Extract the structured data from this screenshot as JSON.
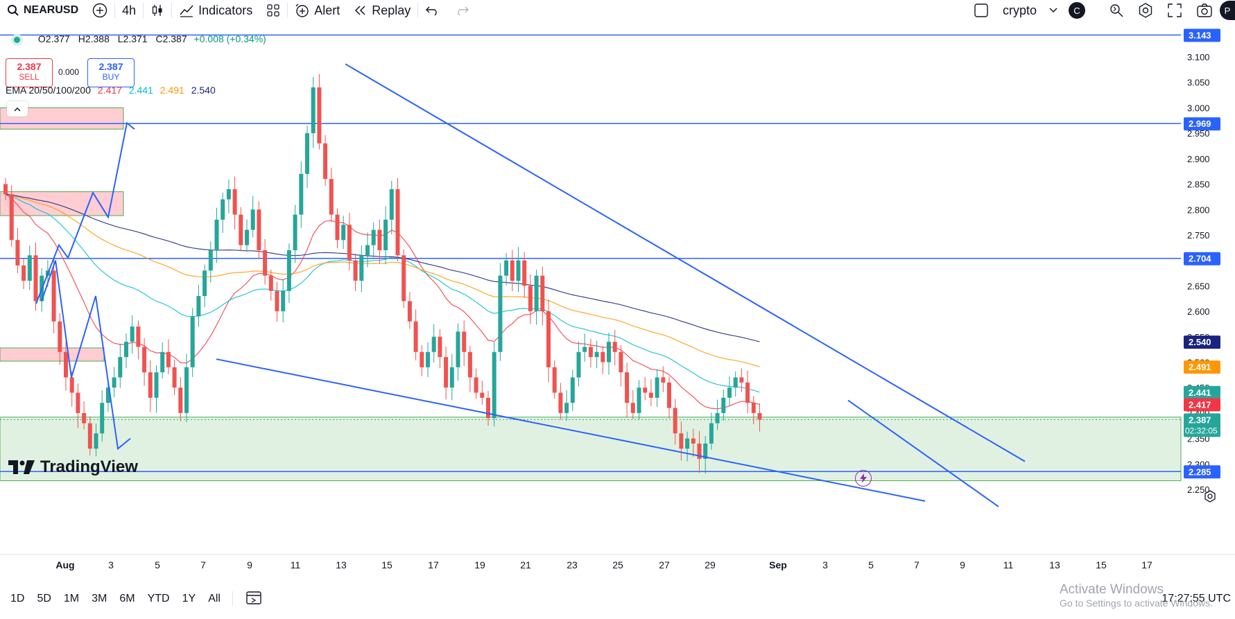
{
  "toolbar": {
    "symbol": "NEARUSD",
    "interval": "4h",
    "indicators_label": "Indicators",
    "alert_label": "Alert",
    "replay_label": "Replay",
    "watchlist_label": "crypto",
    "avatar_letter": "C",
    "profile_letter": "P"
  },
  "ohlc": {
    "open": "O2.377",
    "high": "H2.388",
    "low": "L2.371",
    "close": "C2.387",
    "change": "+0.008 (+0.34%)"
  },
  "trade": {
    "sell_price": "2.387",
    "sell_label": "SELL",
    "spread": "0.000",
    "buy_price": "2.387",
    "buy_label": "BUY"
  },
  "ema": {
    "label": "EMA 20/50/100/200",
    "v20": "2.417",
    "v50": "2.441",
    "v100": "2.491",
    "v200": "2.540"
  },
  "branding": {
    "logo_text": "TradingView"
  },
  "bottom": {
    "ranges": [
      "1D",
      "5D",
      "1M",
      "3M",
      "6M",
      "YTD",
      "1Y",
      "All"
    ],
    "clock": "17:27:55 UTC",
    "watermark_title": "Activate Windows",
    "watermark_sub": "Go to Settings to activate Windows."
  },
  "colors": {
    "up": "#26a69a",
    "down": "#ef5350",
    "trendline": "#2962ff",
    "ema20": "#f23645",
    "ema50": "#00bcd4",
    "ema100": "#ff9800",
    "ema200": "#1a237e",
    "zone_green": "#c8e6c9",
    "zone_red": "#ffcdd2"
  },
  "chart_data": {
    "type": "candlestick",
    "symbol": "NEARUSD",
    "interval": "4h",
    "y_axis": {
      "range": [
        2.22,
        3.16
      ],
      "ticks": [
        "2.250",
        "2.300",
        "2.350",
        "2.400",
        "2.450",
        "2.500",
        "2.550",
        "2.600",
        "2.650",
        "2.700",
        "2.750",
        "2.800",
        "2.850",
        "2.900",
        "2.950",
        "3.000",
        "3.050",
        "3.100"
      ]
    },
    "x_axis": {
      "ticks": [
        "Aug",
        "3",
        "5",
        "7",
        "9",
        "11",
        "13",
        "15",
        "17",
        "19",
        "21",
        "23",
        "25",
        "27",
        "29",
        "Sep",
        "3",
        "5",
        "7",
        "9",
        "11",
        "13",
        "15",
        "17"
      ]
    },
    "price_labels": [
      {
        "value": "3.143",
        "color": "#2962ff"
      },
      {
        "value": "2.969",
        "color": "#2962ff"
      },
      {
        "value": "2.704",
        "color": "#2962ff"
      },
      {
        "value": "2.540",
        "color": "#1a237e"
      },
      {
        "value": "2.491",
        "color": "#ff9800"
      },
      {
        "value": "2.441",
        "color": "#26a69a"
      },
      {
        "value": "2.417",
        "color": "#f23645"
      },
      {
        "value": "2.387",
        "color": "#26a69a",
        "sub": "02:32:05"
      },
      {
        "value": "2.285",
        "color": "#2962ff"
      }
    ],
    "horizontal_levels": [
      3.143,
      2.969,
      2.704,
      2.285
    ],
    "support_zone": [
      2.267,
      2.392
    ],
    "ema_last": {
      "ema20": 2.417,
      "ema50": 2.441,
      "ema100": 2.491,
      "ema200": 2.54
    },
    "closes": [
      2.83,
      2.74,
      2.69,
      2.66,
      2.71,
      2.62,
      2.67,
      2.68,
      2.58,
      2.52,
      2.47,
      2.44,
      2.4,
      2.38,
      2.33,
      2.36,
      2.42,
      2.45,
      2.47,
      2.51,
      2.54,
      2.57,
      2.53,
      2.48,
      2.43,
      2.48,
      2.52,
      2.49,
      2.45,
      2.4,
      2.49,
      2.59,
      2.63,
      2.68,
      2.72,
      2.78,
      2.82,
      2.84,
      2.79,
      2.73,
      2.76,
      2.8,
      2.72,
      2.67,
      2.64,
      2.6,
      2.64,
      2.72,
      2.79,
      2.87,
      2.95,
      3.04,
      2.93,
      2.86,
      2.79,
      2.74,
      2.77,
      2.7,
      2.66,
      2.71,
      2.73,
      2.76,
      2.72,
      2.78,
      2.84,
      2.71,
      2.62,
      2.58,
      2.52,
      2.49,
      2.52,
      2.55,
      2.51,
      2.45,
      2.49,
      2.56,
      2.52,
      2.47,
      2.44,
      2.43,
      2.39,
      2.52,
      2.67,
      2.7,
      2.66,
      2.7,
      2.65,
      2.6,
      2.67,
      2.6,
      2.49,
      2.44,
      2.4,
      2.42,
      2.47,
      2.52,
      2.53,
      2.51,
      2.52,
      2.5,
      2.54,
      2.52,
      2.48,
      2.42,
      2.4,
      2.45,
      2.44,
      2.43,
      2.47,
      2.46,
      2.41,
      2.36,
      2.33,
      2.35,
      2.34,
      2.31,
      2.34,
      2.38,
      2.4,
      2.43,
      2.45,
      2.47,
      2.46,
      2.42,
      2.4,
      2.387
    ]
  }
}
